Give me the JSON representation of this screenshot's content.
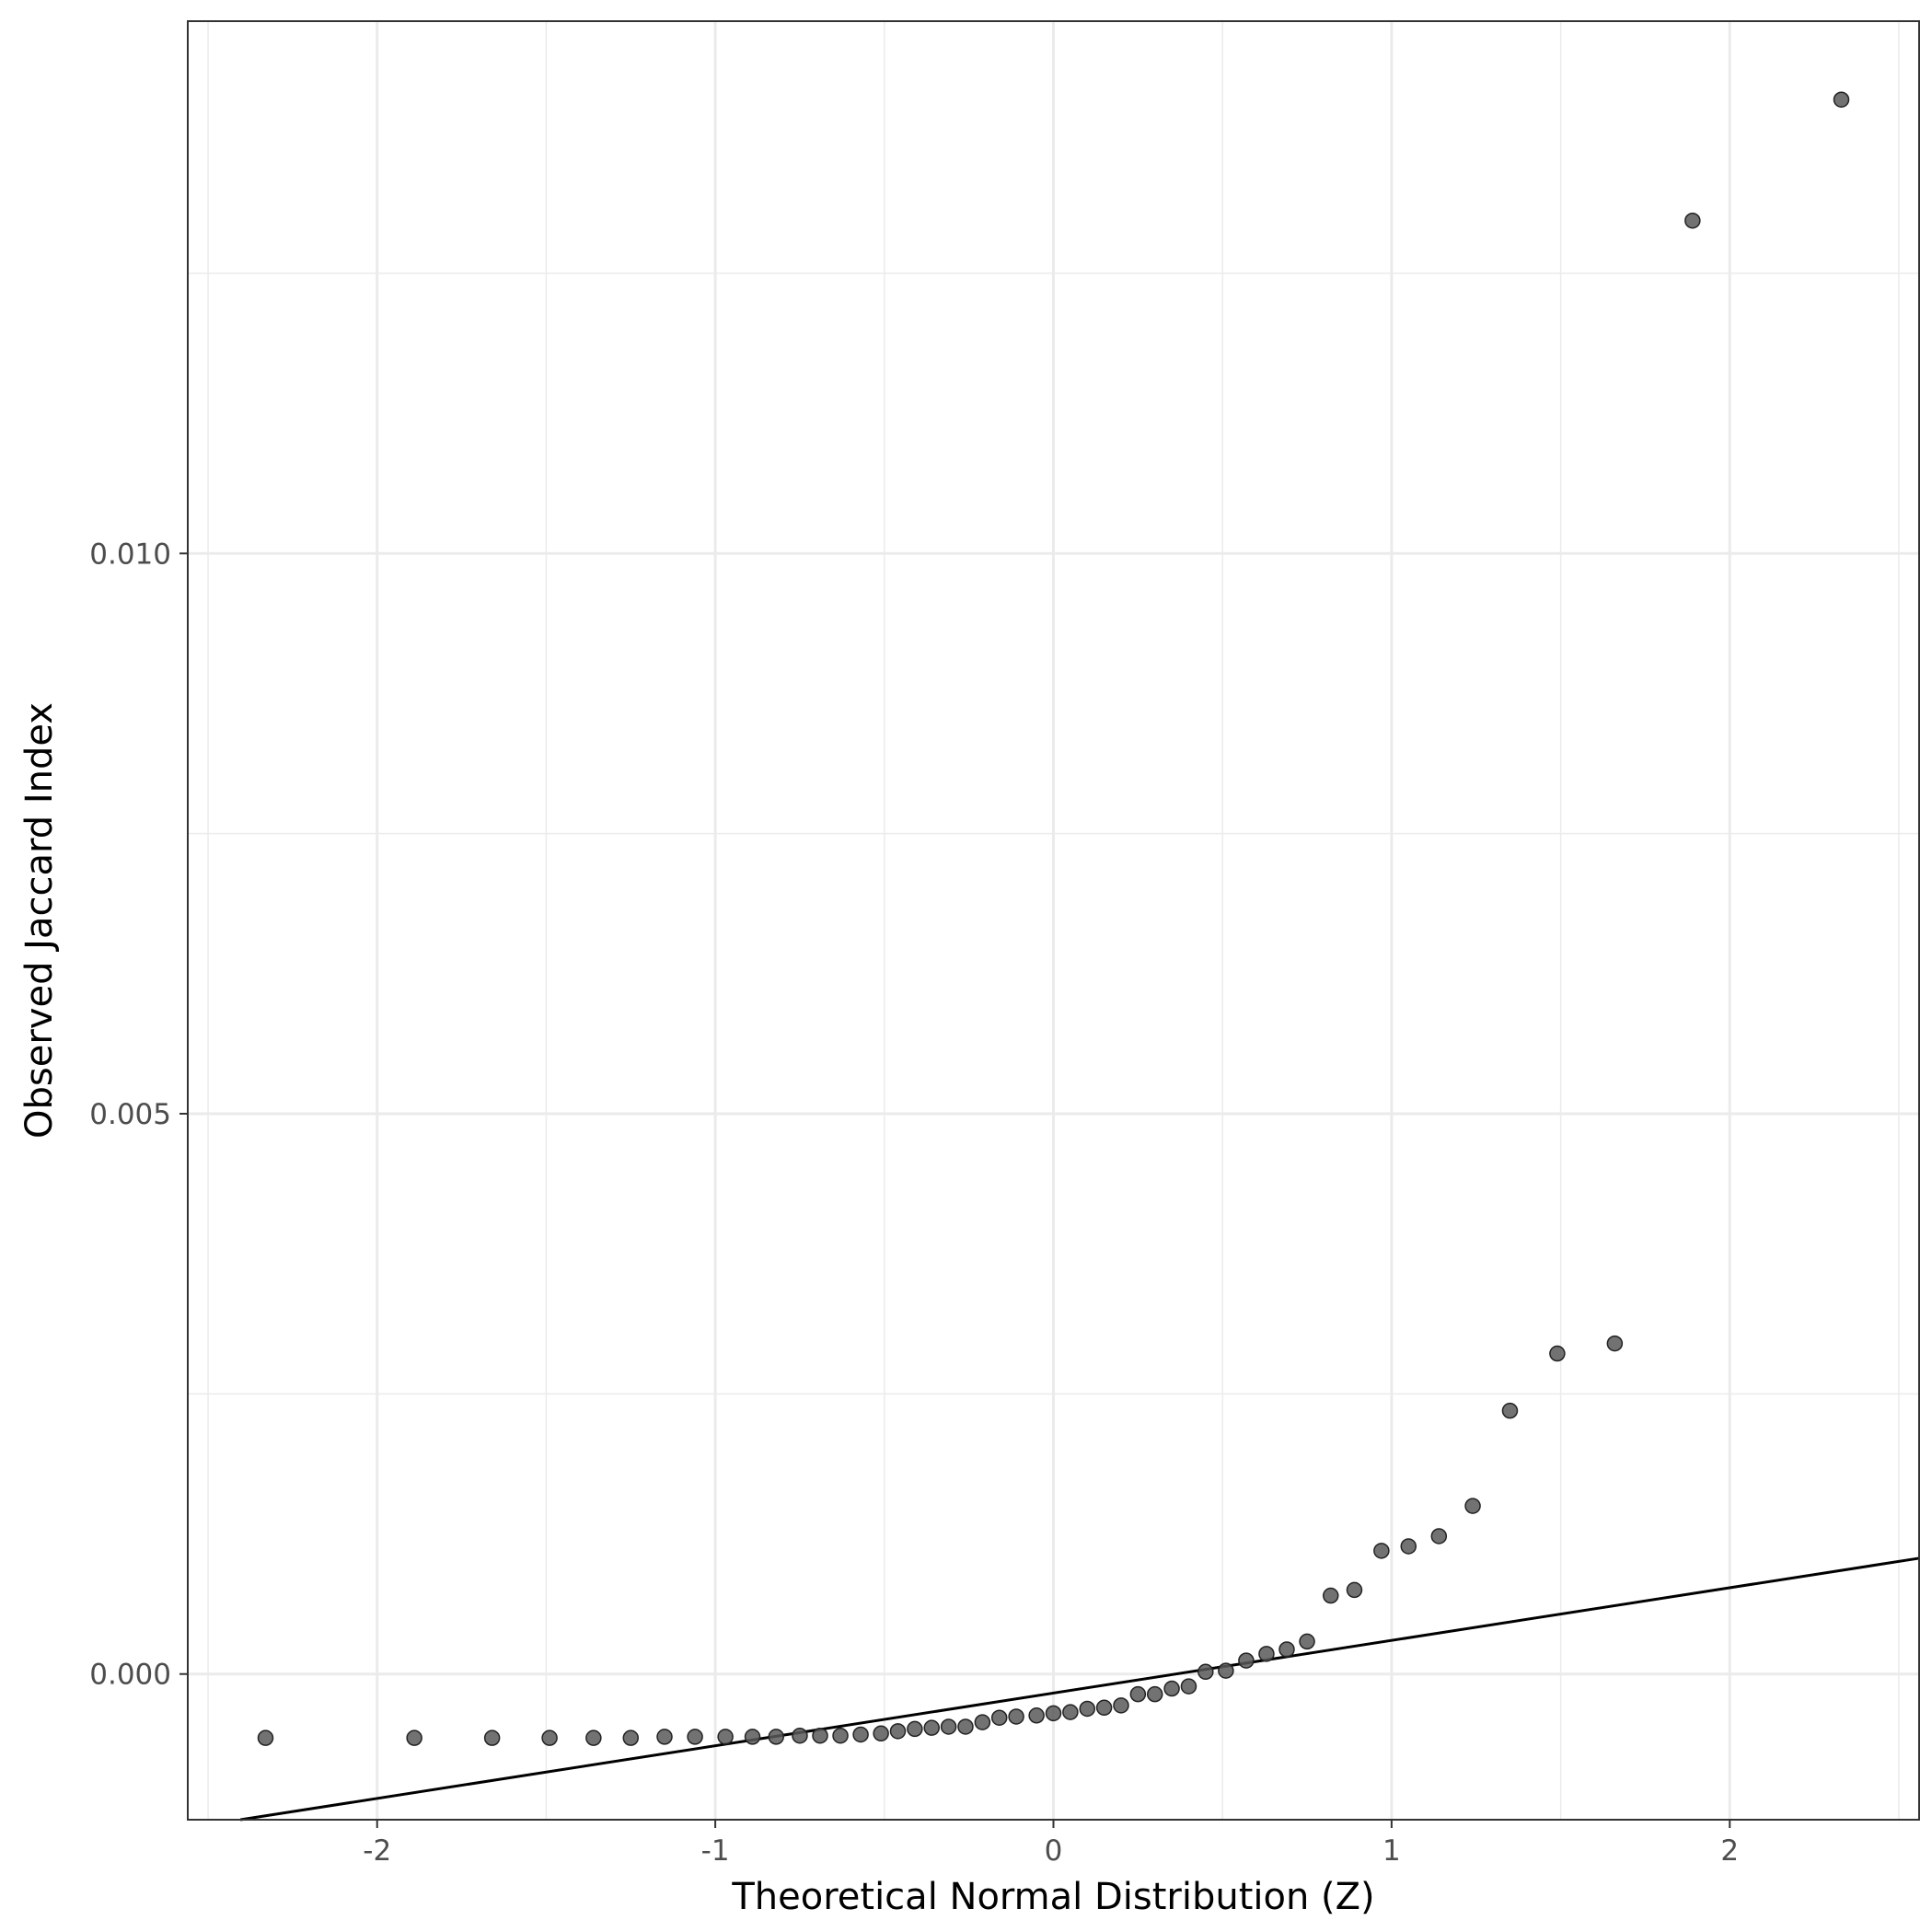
{
  "chart_data": {
    "type": "scatter",
    "title": "",
    "xlabel": "Theoretical Normal Distribution (Z)",
    "ylabel": "Observed Jaccard Index",
    "xlim": [
      -2.56,
      2.56
    ],
    "ylim": [
      -0.0013,
      0.01475
    ],
    "x_ticks": [
      -2,
      -1,
      0,
      1,
      2
    ],
    "x_tick_labels": [
      "-2",
      "-1",
      "0",
      "1",
      "2"
    ],
    "y_ticks": [
      0.0,
      0.005,
      0.01
    ],
    "y_tick_labels": [
      "0.000",
      "0.005",
      "0.010"
    ],
    "grid": true,
    "theme": "bw",
    "point_color": "#595959",
    "line_color": "#000000",
    "reference_line": {
      "slope": 0.00047,
      "intercept": -0.00017
    },
    "series": [
      {
        "x": [
          -2.33,
          -1.89,
          -1.66,
          -1.49,
          -1.36,
          -1.25,
          -1.15,
          -1.06,
          -0.97,
          -0.89,
          -0.82,
          -0.75,
          -0.69,
          -0.63,
          -0.57,
          -0.51,
          -0.46,
          -0.41,
          -0.36,
          -0.31,
          -0.26,
          -0.21,
          -0.16,
          -0.11,
          -0.05,
          0.0,
          0.05,
          0.1,
          0.15,
          0.2,
          0.25,
          0.3,
          0.35,
          0.4,
          0.45,
          0.51,
          0.57,
          0.63,
          0.69,
          0.75,
          0.82,
          0.89,
          0.97,
          1.05,
          1.14,
          1.24,
          1.35,
          1.49,
          1.66,
          1.89,
          2.33
        ],
        "y": [
          -0.00057,
          -0.00057,
          -0.00057,
          -0.00057,
          -0.00057,
          -0.00057,
          -0.00056,
          -0.00056,
          -0.00056,
          -0.00056,
          -0.00056,
          -0.00055,
          -0.00055,
          -0.00055,
          -0.00054,
          -0.00053,
          -0.00051,
          -0.00049,
          -0.00048,
          -0.00047,
          -0.00047,
          -0.00043,
          -0.00039,
          -0.00038,
          -0.00037,
          -0.00035,
          -0.00034,
          -0.00031,
          -0.0003,
          -0.00028,
          -0.00018,
          -0.00018,
          -0.00013,
          -0.00011,
          2e-05,
          3e-05,
          0.00012,
          0.00018,
          0.00022,
          0.00029,
          0.0007,
          0.00075,
          0.0011,
          0.00114,
          0.00123,
          0.0015,
          0.00235,
          0.00286,
          0.00295,
          0.01297,
          0.01405
        ]
      }
    ]
  }
}
